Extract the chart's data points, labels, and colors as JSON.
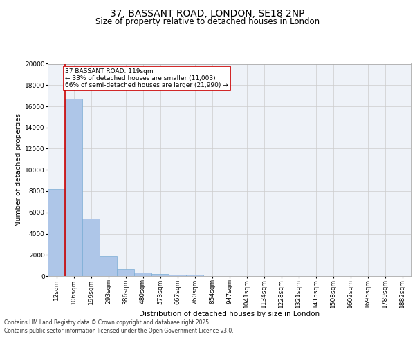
{
  "title_line1": "37, BASSANT ROAD, LONDON, SE18 2NP",
  "title_line2": "Size of property relative to detached houses in London",
  "xlabel": "Distribution of detached houses by size in London",
  "ylabel": "Number of detached properties",
  "categories": [
    "12sqm",
    "106sqm",
    "199sqm",
    "293sqm",
    "386sqm",
    "480sqm",
    "573sqm",
    "667sqm",
    "760sqm",
    "854sqm",
    "947sqm",
    "1041sqm",
    "1134sqm",
    "1228sqm",
    "1321sqm",
    "1415sqm",
    "1508sqm",
    "1602sqm",
    "1695sqm",
    "1789sqm",
    "1882sqm"
  ],
  "values": [
    8200,
    16700,
    5400,
    1900,
    650,
    350,
    220,
    150,
    120,
    0,
    0,
    0,
    0,
    0,
    0,
    0,
    0,
    0,
    0,
    0,
    0
  ],
  "bar_color": "#aec6e8",
  "bar_edge_color": "#7aadd4",
  "vline_color": "#cc0000",
  "annotation_text": "37 BASSANT ROAD: 119sqm\n← 33% of detached houses are smaller (11,003)\n66% of semi-detached houses are larger (21,990) →",
  "annotation_box_color": "#ffffff",
  "annotation_box_edge_color": "#cc0000",
  "ylim": [
    0,
    20000
  ],
  "yticks": [
    0,
    2000,
    4000,
    6000,
    8000,
    10000,
    12000,
    14000,
    16000,
    18000,
    20000
  ],
  "grid_color": "#cccccc",
  "background_color": "#eef2f8",
  "footer_line1": "Contains HM Land Registry data © Crown copyright and database right 2025.",
  "footer_line2": "Contains public sector information licensed under the Open Government Licence v3.0.",
  "title_fontsize": 10,
  "subtitle_fontsize": 8.5,
  "tick_fontsize": 6.5,
  "label_fontsize": 7.5,
  "annotation_fontsize": 6.5,
  "footer_fontsize": 5.5
}
